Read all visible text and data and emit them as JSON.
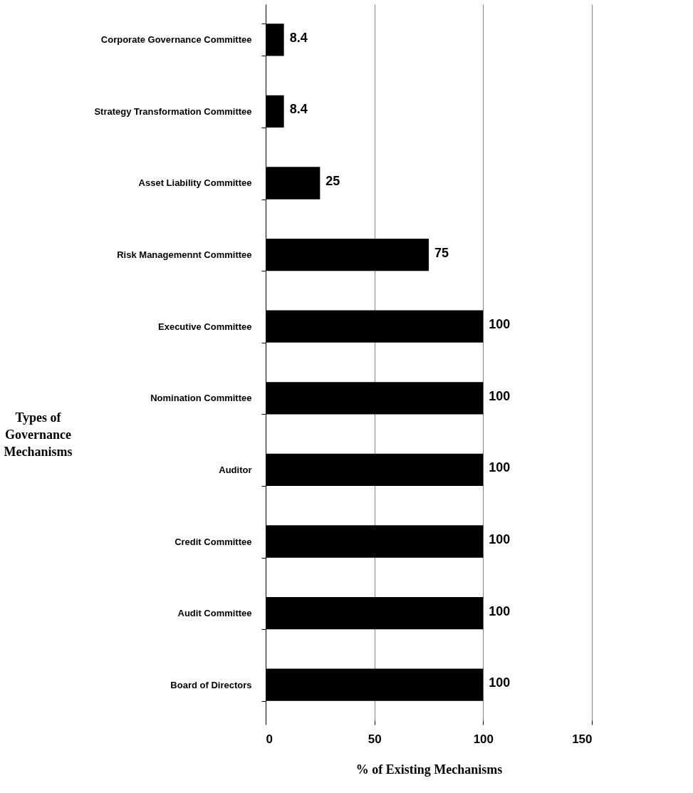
{
  "chart_data": {
    "type": "bar",
    "orientation": "horizontal",
    "xlabel": "% of Existing Mechanisms",
    "ylabel": "Types of Governance Mechanisms",
    "categories": [
      "Corporate Governance Committee",
      "Strategy Transformation Committee",
      "Asset Liability Committee",
      "Risk Managemennt Committee",
      "Executive Committee",
      "Nomination Committee",
      "Auditor",
      "Credit Committee",
      "Audit Committee",
      "Board of Directors"
    ],
    "values": [
      8.4,
      8.4,
      25,
      75,
      100,
      100,
      100,
      100,
      100,
      100
    ],
    "color": "#000000",
    "xlim": [
      0,
      150
    ],
    "xticks": [
      0,
      50,
      100,
      150
    ],
    "grid": "x",
    "data_labels": true
  }
}
